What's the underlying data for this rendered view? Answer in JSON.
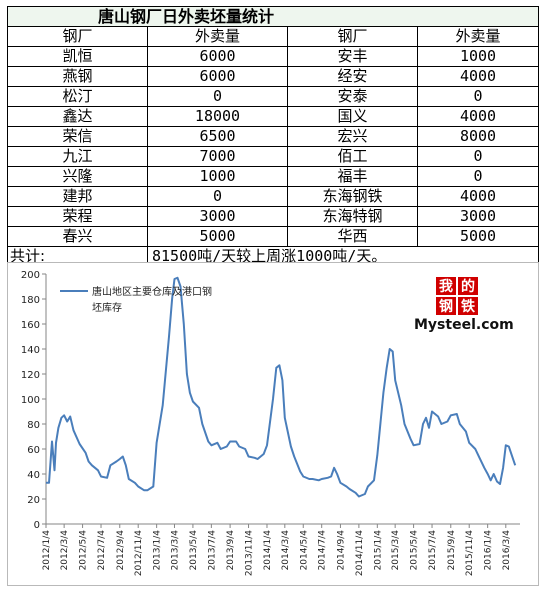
{
  "table": {
    "title": "唐山钢厂日外卖坯量统计",
    "headers": [
      "钢厂",
      "外卖量",
      "钢厂",
      "外卖量"
    ],
    "rows": [
      [
        "凯恒",
        "6000",
        "安丰",
        "1000"
      ],
      [
        "燕钢",
        "6000",
        "经安",
        "4000"
      ],
      [
        "松汀",
        "0",
        "安泰",
        "0"
      ],
      [
        "鑫达",
        "18000",
        "国义",
        "4000"
      ],
      [
        "荣信",
        "6500",
        "宏兴",
        "8000"
      ],
      [
        "九江",
        "7000",
        "佰工",
        "0"
      ],
      [
        "兴隆",
        "1000",
        "福丰",
        "0"
      ],
      [
        "建邦",
        "0",
        "东海钢铁",
        "4000"
      ],
      [
        "荣程",
        "3000",
        "东海特钢",
        "3000"
      ],
      [
        "春兴",
        "5000",
        "华西",
        "5000"
      ]
    ],
    "total_label": "共计:",
    "total_text": "81500吨/天较上周涨1000吨/天。"
  },
  "chart_data": {
    "type": "line",
    "series": [
      {
        "name": "唐山地区主要仓库及港口钢坯库存",
        "color": "#4a7ebb",
        "points": [
          [
            "2012-01-04",
            33
          ],
          [
            "2012-01-14",
            33
          ],
          [
            "2012-01-24",
            66
          ],
          [
            "2012-02-01",
            43
          ],
          [
            "2012-02-06",
            65
          ],
          [
            "2012-02-14",
            77
          ],
          [
            "2012-02-24",
            85
          ],
          [
            "2012-03-04",
            87
          ],
          [
            "2012-03-14",
            82
          ],
          [
            "2012-03-24",
            86
          ],
          [
            "2012-04-04",
            75
          ],
          [
            "2012-04-24",
            64
          ],
          [
            "2012-05-14",
            57
          ],
          [
            "2012-05-24",
            50
          ],
          [
            "2012-06-04",
            47
          ],
          [
            "2012-06-24",
            43
          ],
          [
            "2012-07-04",
            38
          ],
          [
            "2012-07-24",
            37
          ],
          [
            "2012-08-04",
            47
          ],
          [
            "2012-08-24",
            50
          ],
          [
            "2012-09-04",
            52
          ],
          [
            "2012-09-14",
            54
          ],
          [
            "2012-09-24",
            47
          ],
          [
            "2012-10-04",
            36
          ],
          [
            "2012-10-24",
            33
          ],
          [
            "2012-11-04",
            30
          ],
          [
            "2012-11-24",
            27
          ],
          [
            "2012-12-04",
            27
          ],
          [
            "2012-12-24",
            30
          ],
          [
            "2013-01-04",
            65
          ],
          [
            "2013-01-24",
            95
          ],
          [
            "2013-02-14",
            150
          ],
          [
            "2013-02-24",
            180
          ],
          [
            "2013-03-04",
            196
          ],
          [
            "2013-03-14",
            197
          ],
          [
            "2013-03-24",
            190
          ],
          [
            "2013-04-04",
            160
          ],
          [
            "2013-04-14",
            120
          ],
          [
            "2013-04-24",
            105
          ],
          [
            "2013-05-04",
            98
          ],
          [
            "2013-05-24",
            93
          ],
          [
            "2013-06-04",
            80
          ],
          [
            "2013-06-24",
            66
          ],
          [
            "2013-07-04",
            63
          ],
          [
            "2013-07-24",
            65
          ],
          [
            "2013-08-04",
            60
          ],
          [
            "2013-08-24",
            62
          ],
          [
            "2013-09-04",
            66
          ],
          [
            "2013-09-24",
            66
          ],
          [
            "2013-10-04",
            62
          ],
          [
            "2013-10-24",
            60
          ],
          [
            "2013-11-04",
            54
          ],
          [
            "2013-11-24",
            53
          ],
          [
            "2013-12-04",
            52
          ],
          [
            "2013-12-24",
            56
          ],
          [
            "2014-01-04",
            63
          ],
          [
            "2014-01-24",
            100
          ],
          [
            "2014-02-04",
            125
          ],
          [
            "2014-02-14",
            127
          ],
          [
            "2014-02-24",
            115
          ],
          [
            "2014-03-04",
            85
          ],
          [
            "2014-03-24",
            62
          ],
          [
            "2014-04-04",
            54
          ],
          [
            "2014-04-24",
            42
          ],
          [
            "2014-05-04",
            38
          ],
          [
            "2014-05-24",
            36
          ],
          [
            "2014-06-04",
            36
          ],
          [
            "2014-06-24",
            35
          ],
          [
            "2014-07-04",
            36
          ],
          [
            "2014-07-24",
            37
          ],
          [
            "2014-08-04",
            38
          ],
          [
            "2014-08-14",
            45
          ],
          [
            "2014-08-24",
            40
          ],
          [
            "2014-09-04",
            33
          ],
          [
            "2014-09-24",
            30
          ],
          [
            "2014-10-04",
            28
          ],
          [
            "2014-10-24",
            25
          ],
          [
            "2014-11-04",
            22
          ],
          [
            "2014-11-24",
            24
          ],
          [
            "2014-12-04",
            30
          ],
          [
            "2014-12-24",
            35
          ],
          [
            "2015-01-04",
            55
          ],
          [
            "2015-01-24",
            105
          ],
          [
            "2015-02-04",
            125
          ],
          [
            "2015-02-14",
            140
          ],
          [
            "2015-02-24",
            138
          ],
          [
            "2015-03-04",
            115
          ],
          [
            "2015-03-24",
            95
          ],
          [
            "2015-04-04",
            80
          ],
          [
            "2015-04-24",
            68
          ],
          [
            "2015-05-04",
            63
          ],
          [
            "2015-05-24",
            64
          ],
          [
            "2015-06-04",
            80
          ],
          [
            "2015-06-14",
            85
          ],
          [
            "2015-06-24",
            77
          ],
          [
            "2015-07-04",
            90
          ],
          [
            "2015-07-24",
            86
          ],
          [
            "2015-08-04",
            80
          ],
          [
            "2015-08-24",
            82
          ],
          [
            "2015-09-04",
            87
          ],
          [
            "2015-09-24",
            88
          ],
          [
            "2015-10-04",
            80
          ],
          [
            "2015-10-24",
            74
          ],
          [
            "2015-11-04",
            65
          ],
          [
            "2015-11-24",
            60
          ],
          [
            "2015-12-04",
            55
          ],
          [
            "2015-12-24",
            45
          ],
          [
            "2016-01-04",
            40
          ],
          [
            "2016-01-14",
            35
          ],
          [
            "2016-01-24",
            40
          ],
          [
            "2016-02-04",
            34
          ],
          [
            "2016-02-14",
            32
          ],
          [
            "2016-02-24",
            45
          ],
          [
            "2016-03-04",
            63
          ],
          [
            "2016-03-14",
            62
          ],
          [
            "2016-03-24",
            55
          ],
          [
            "2016-04-04",
            47
          ]
        ]
      }
    ],
    "x_ticks": [
      "2012/1/4",
      "2012/3/4",
      "2012/5/4",
      "2012/7/4",
      "2012/9/4",
      "2012/11/4",
      "2013/1/4",
      "2013/3/4",
      "2013/5/4",
      "2013/7/4",
      "2013/9/4",
      "2013/11/4",
      "2014/1/4",
      "2014/3/4",
      "2014/5/4",
      "2014/7/4",
      "2014/9/4",
      "2014/11/4",
      "2015/1/4",
      "2015/3/4",
      "2015/5/4",
      "2015/7/4",
      "2015/9/4",
      "2015/11/4",
      "2016/1/4",
      "2016/3/4"
    ],
    "y_ticks": [
      0,
      20,
      40,
      60,
      80,
      100,
      120,
      140,
      160,
      180,
      200
    ],
    "ylim": [
      0,
      200
    ],
    "xlim": [
      "2012-01-04",
      "2016-04-20"
    ],
    "legend_position": "top-left",
    "grid": false
  },
  "logo": {
    "chars": [
      "我",
      "的",
      "钢",
      "铁"
    ],
    "text": "Mysteel.com",
    "color": "#d00000"
  }
}
